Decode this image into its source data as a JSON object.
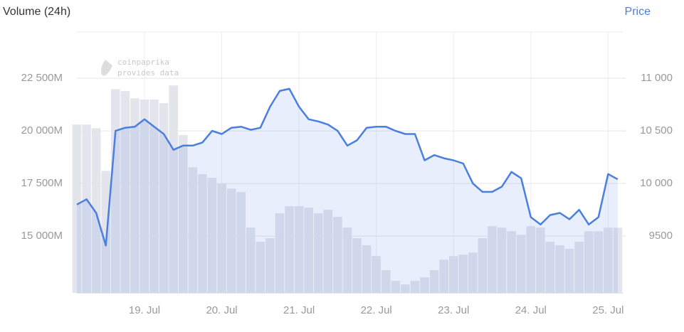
{
  "chart_data": {
    "type": "bar-line",
    "title": "Volume (24h)",
    "y2_title": "Price",
    "watermark": [
      "coinpaprika",
      "provides data"
    ],
    "categories": [
      null,
      null,
      null,
      null,
      null,
      null,
      null,
      "19. Jul",
      null,
      null,
      null,
      null,
      null,
      null,
      null,
      "20. Jul",
      null,
      null,
      null,
      null,
      null,
      null,
      null,
      "21. Jul",
      null,
      null,
      null,
      null,
      null,
      null,
      null,
      "22. Jul",
      null,
      null,
      null,
      null,
      null,
      null,
      null,
      "23. Jul",
      null,
      null,
      null,
      null,
      null,
      null,
      null,
      "24. Jul",
      null,
      null,
      null,
      null,
      null,
      null,
      null,
      "25. Jul",
      null
    ],
    "series": [
      {
        "name": "Volume (24h)",
        "type": "bar",
        "axis": "y",
        "color": "#e4e5ec",
        "values": [
          20300,
          20300,
          20130,
          18100,
          21990,
          21890,
          21550,
          21490,
          21490,
          21320,
          22160,
          19800,
          18270,
          17940,
          17770,
          17500,
          17260,
          17090,
          15400,
          14730,
          14900,
          16080,
          16420,
          16420,
          16350,
          16080,
          16250,
          15910,
          15400,
          14900,
          14560,
          14050,
          13380,
          12870,
          12700,
          12870,
          13040,
          13380,
          13880,
          14050,
          14120,
          14220,
          14900,
          15470,
          15400,
          15230,
          15060,
          15470,
          15400,
          14730,
          14560,
          14390,
          14730,
          15230,
          15230,
          15400,
          15400
        ]
      },
      {
        "name": "Price",
        "type": "line",
        "axis": "y2",
        "color": "#4a7fe0",
        "values": [
          9800,
          9850,
          9720,
          9410,
          10500,
          10530,
          10540,
          10610,
          10540,
          10470,
          10320,
          10360,
          10360,
          10390,
          10500,
          10470,
          10530,
          10540,
          10510,
          10530,
          10730,
          10880,
          10900,
          10730,
          10610,
          10590,
          10560,
          10500,
          10360,
          10410,
          10530,
          10540,
          10540,
          10500,
          10470,
          10470,
          10220,
          10270,
          10240,
          10220,
          10190,
          10000,
          9920,
          9920,
          9970,
          10110,
          10050,
          9680,
          9610,
          9700,
          9720,
          9660,
          9750,
          9610,
          9680,
          10090,
          10040
        ]
      }
    ],
    "ylim": [
      12300,
      24700
    ],
    "yticks": [
      {
        "value": 15000,
        "label": "15 000M"
      },
      {
        "value": 17500,
        "label": "17 500M"
      },
      {
        "value": 20000,
        "label": "20 000M"
      },
      {
        "value": 22500,
        "label": "22 500M"
      }
    ],
    "y2lim": [
      8960,
      11440
    ],
    "y2ticks": [
      9500,
      {
        "value": 10000,
        "label": "10 000"
      },
      {
        "value": 10500,
        "label": "10 500"
      },
      {
        "value": 11000,
        "label": "11 000"
      }
    ],
    "grid": true
  }
}
